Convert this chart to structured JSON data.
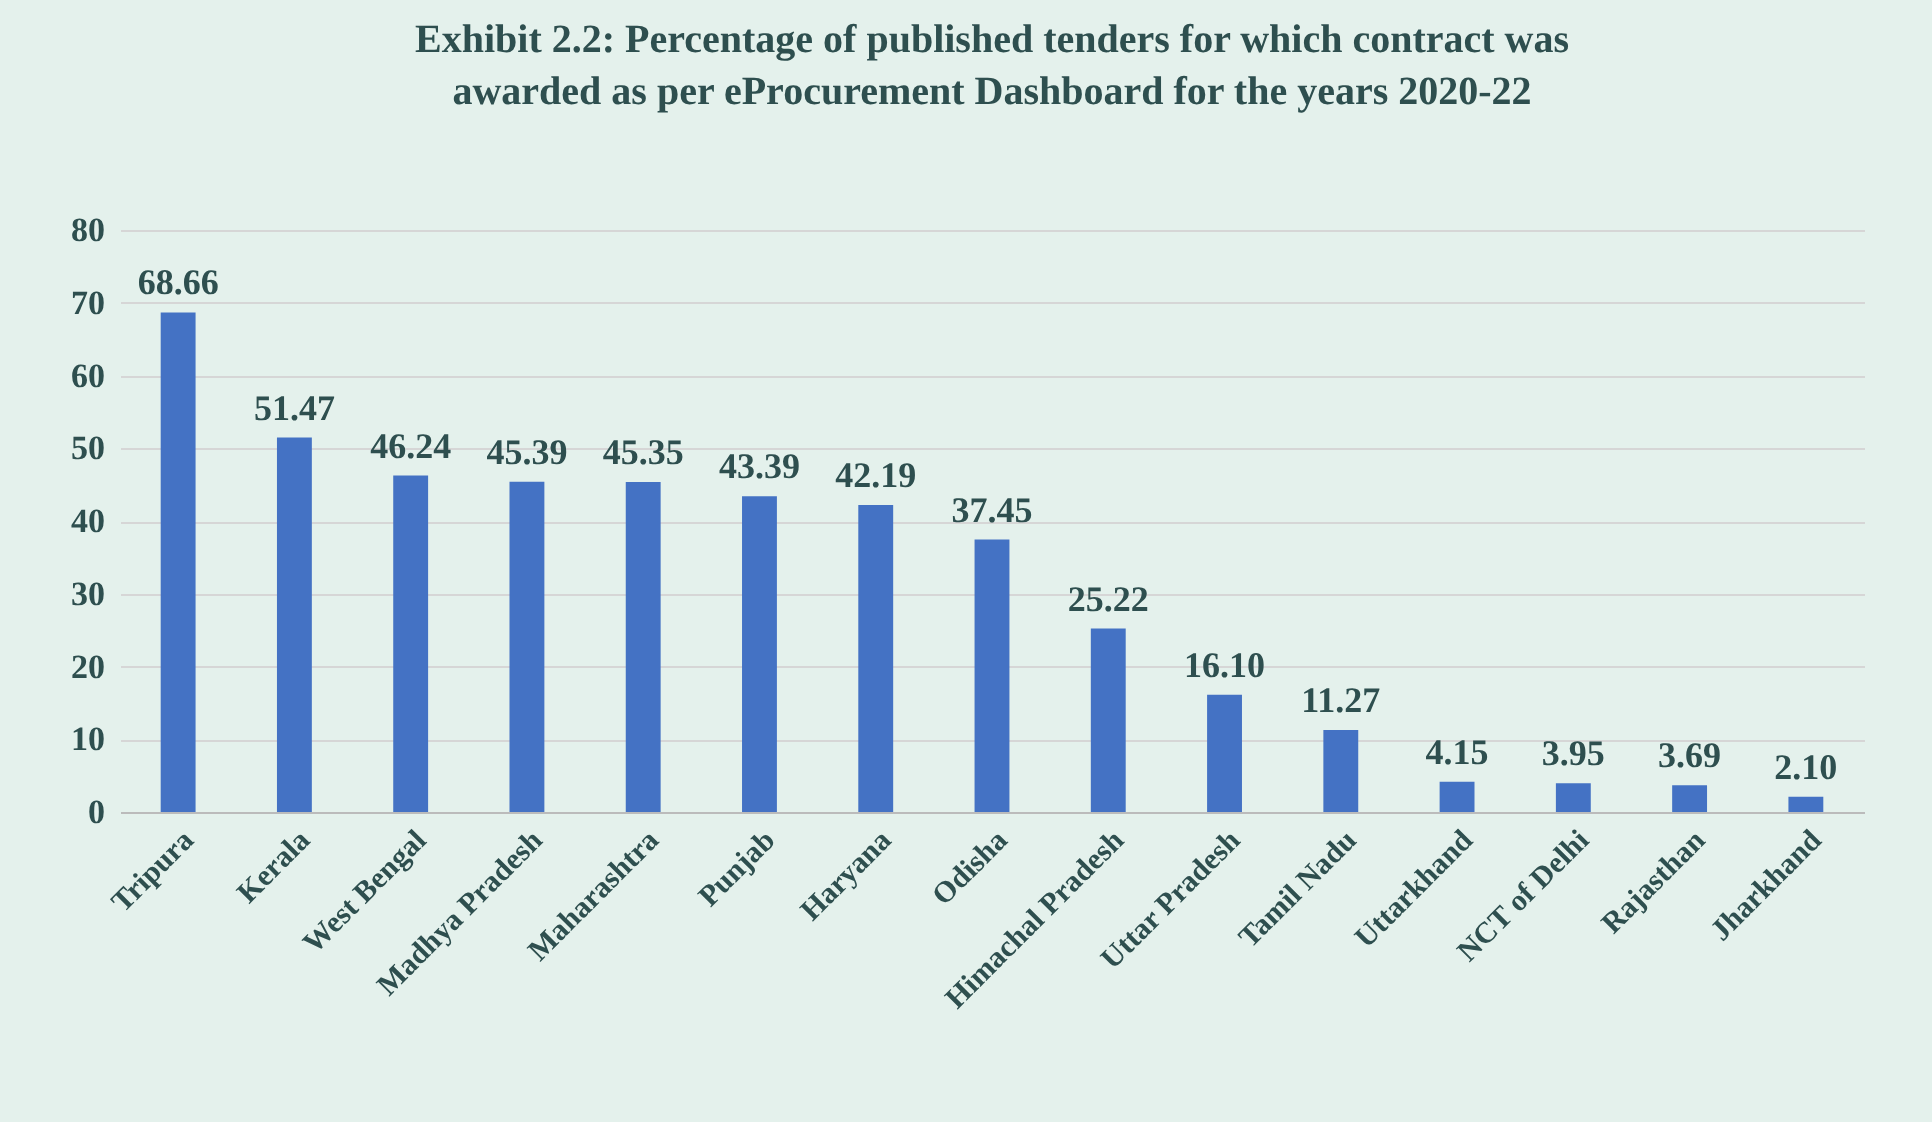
{
  "chart_data": {
    "type": "bar",
    "title": [
      "Exhibit 2.2: Percentage of published tenders for which contract was",
      "awarded as per eProcurement Dashboard for the years 2020-22"
    ],
    "categories": [
      "Tripura",
      "Kerala",
      "West Bengal",
      "Madhya Pradesh",
      "Maharashtra",
      "Punjab",
      "Haryana",
      "Odisha",
      "Himachal Pradesh",
      "Uttar Pradesh",
      "Tamil Nadu",
      "Uttarkhand",
      "NCT of Delhi",
      "Rajasthan",
      "Jharkhand"
    ],
    "values": [
      68.66,
      51.47,
      46.24,
      45.39,
      45.35,
      43.39,
      42.19,
      37.45,
      25.22,
      16.1,
      11.27,
      4.15,
      3.95,
      3.69,
      2.1
    ],
    "value_labels": [
      "68.66",
      "51.47",
      "46.24",
      "45.39",
      "45.35",
      "43.39",
      "42.19",
      "37.45",
      "25.22",
      "16.10",
      "11.27",
      "4.15",
      "3.95",
      "3.69",
      "2.10"
    ],
    "color": "#4472c4",
    "ylim": [
      0,
      80
    ],
    "yticks": [
      0,
      10,
      20,
      30,
      40,
      50,
      60,
      70,
      80
    ],
    "grid": "y"
  }
}
